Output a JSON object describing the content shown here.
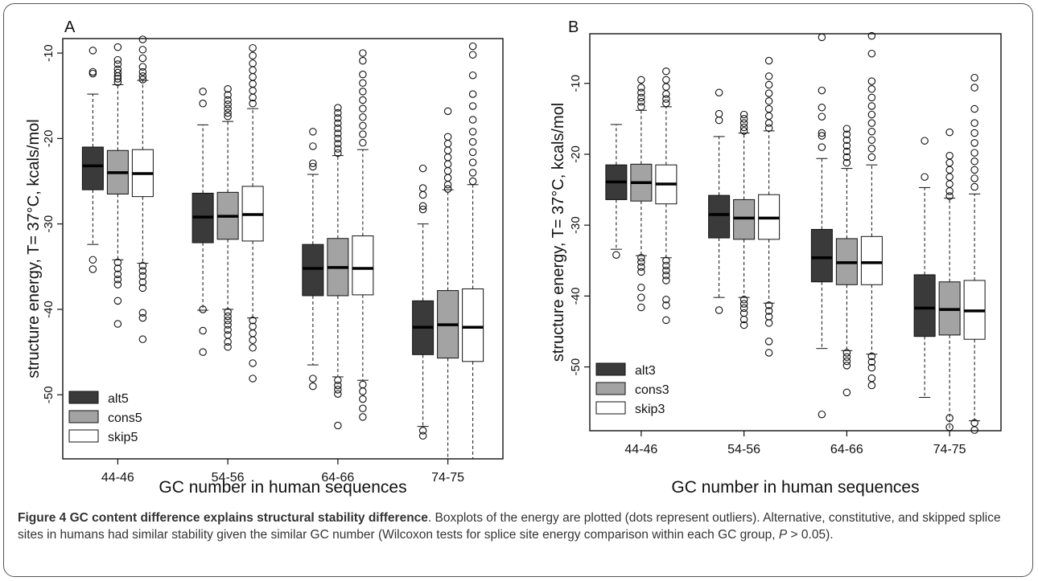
{
  "chart_data": [
    {
      "type": "box",
      "panel_label": "A",
      "ylabel": "structure energy, T= 37°C, kcals/mol",
      "xlabel": "GC number in human sequences",
      "ylim": [
        -57.5,
        -8.3
      ],
      "yticks": [
        -10,
        -20,
        -30,
        -40,
        -50
      ],
      "categories": [
        "44-46",
        "54-56",
        "64-66",
        "74-75"
      ],
      "legend": {
        "position": "bottom-left",
        "entries": [
          "alt5",
          "cons5",
          "skip5"
        ]
      },
      "series": [
        {
          "name": "alt5",
          "color": "#3a3a3a",
          "boxes": [
            {
              "whisker_low": -32.4,
              "q1": -26.0,
              "median": -23.2,
              "q3": -21.0,
              "whisker_high": -14.8,
              "outliers": [
                -9.7,
                -12.2,
                -12.4,
                -34.2,
                -35.3
              ]
            },
            {
              "whisker_low": -40.1,
              "q1": -32.2,
              "median": -29.2,
              "q3": -26.4,
              "whisker_high": -18.4,
              "outliers": [
                -14.5,
                -15.9,
                -40.0,
                -42.5,
                -45.0
              ]
            },
            {
              "whisker_low": -46.5,
              "q1": -38.4,
              "median": -35.2,
              "q3": -32.4,
              "whisker_high": -24.2,
              "outliers": [
                -19.2,
                -20.9,
                -22.9,
                -23.3,
                -48.1,
                -49.0
              ]
            },
            {
              "whisker_low": -53.7,
              "q1": -45.3,
              "median": -42.1,
              "q3": -39.0,
              "whisker_high": -30.0,
              "outliers": [
                -23.5,
                -25.8,
                -26.6,
                -27.9,
                -28.3,
                -54.2,
                -54.8
              ]
            }
          ]
        },
        {
          "name": "cons5",
          "color": "#a3a3a3",
          "boxes": [
            {
              "whisker_low": -34.2,
              "q1": -26.5,
              "median": -24.0,
              "q3": -21.4,
              "whisker_high": -13.7,
              "outliers": [
                -9.3,
                -10.8,
                -11.3,
                -11.9,
                -12.3,
                -12.7,
                -13.0,
                -13.4,
                -34.5,
                -35.2,
                -35.9,
                -36.5,
                -37.1,
                -39.0,
                -41.7
              ]
            },
            {
              "whisker_low": -40.0,
              "q1": -31.8,
              "median": -29.1,
              "q3": -26.3,
              "whisker_high": -18.0,
              "outliers": [
                -14.2,
                -14.9,
                -15.5,
                -16.0,
                -16.5,
                -17.0,
                -17.4,
                -40.3,
                -40.8,
                -41.3,
                -41.8,
                -42.4,
                -43.0,
                -43.8,
                -44.4
              ]
            },
            {
              "whisker_low": -47.9,
              "q1": -38.4,
              "median": -35.1,
              "q3": -31.7,
              "whisker_high": -22.0,
              "outliers": [
                -16.4,
                -17.0,
                -17.6,
                -18.2,
                -18.8,
                -19.4,
                -20.0,
                -20.6,
                -21.2,
                -21.7,
                -48.3,
                -48.9,
                -49.4,
                -49.9,
                -53.6
              ]
            },
            {
              "whisker_low": -57.5,
              "q1": -45.7,
              "median": -41.8,
              "q3": -37.8,
              "whisker_high": -26.0,
              "outliers": [
                -16.8,
                -19.8,
                -20.6,
                -21.4,
                -22.2,
                -23.0,
                -23.8,
                -24.6,
                -25.4,
                -25.9
              ]
            }
          ]
        },
        {
          "name": "skip5",
          "color": "#ffffff",
          "boxes": [
            {
              "whisker_low": -34.6,
              "q1": -26.8,
              "median": -24.1,
              "q3": -21.3,
              "whisker_high": -13.2,
              "outliers": [
                -8.4,
                -9.6,
                -10.6,
                -11.6,
                -12.2,
                -12.7,
                -13.1,
                -34.9,
                -35.5,
                -36.1,
                -36.8,
                -37.5,
                -40.4,
                -41.0,
                -43.5
              ]
            },
            {
              "whisker_low": -41.0,
              "q1": -32.0,
              "median": -28.9,
              "q3": -25.6,
              "whisker_high": -16.5,
              "outliers": [
                -9.4,
                -10.3,
                -11.2,
                -12.0,
                -12.8,
                -13.6,
                -14.4,
                -15.2,
                -15.9,
                -41.3,
                -42.0,
                -42.8,
                -43.6,
                -44.5,
                -46.3,
                -48.1
              ]
            },
            {
              "whisker_low": -48.3,
              "q1": -38.3,
              "median": -35.2,
              "q3": -31.4,
              "whisker_high": -21.3,
              "outliers": [
                -10.0,
                -10.9,
                -12.5,
                -13.5,
                -14.5,
                -15.5,
                -16.5,
                -17.5,
                -18.5,
                -19.5,
                -20.5,
                -48.8,
                -49.6,
                -50.5,
                -51.6,
                -52.6
              ]
            },
            {
              "whisker_low": -57.5,
              "q1": -46.1,
              "median": -42.1,
              "q3": -37.6,
              "whisker_high": -25.4,
              "outliers": [
                -9.2,
                -10.2,
                -12.6,
                -14.8,
                -16.2,
                -17.8,
                -19.2,
                -20.4,
                -21.6,
                -22.8,
                -24.0,
                -25.0
              ]
            }
          ]
        }
      ]
    },
    {
      "type": "box",
      "panel_label": "B",
      "ylabel": "structure energy, T= 37°C, kcals/mol",
      "xlabel": "GC number in human sequences",
      "ylim": [
        -59.0,
        -3.0
      ],
      "yticks": [
        -10,
        -20,
        -30,
        -40,
        -50
      ],
      "categories": [
        "44-46",
        "54-56",
        "64-66",
        "74-75"
      ],
      "legend": {
        "position": "bottom-left",
        "entries": [
          "alt3",
          "cons3",
          "skip3"
        ]
      },
      "series": [
        {
          "name": "alt3",
          "color": "#3a3a3a",
          "boxes": [
            {
              "whisker_low": -33.4,
              "q1": -26.4,
              "median": -23.9,
              "q3": -21.5,
              "whisker_high": -15.8,
              "outliers": [
                -34.2
              ]
            },
            {
              "whisker_low": -40.2,
              "q1": -31.8,
              "median": -28.5,
              "q3": -25.8,
              "whisker_high": -17.5,
              "outliers": [
                -11.3,
                -14.3,
                -15.2,
                -42.0
              ]
            },
            {
              "whisker_low": -47.4,
              "q1": -38.0,
              "median": -34.6,
              "q3": -30.6,
              "whisker_high": -20.6,
              "outliers": [
                -3.5,
                -11.0,
                -13.4,
                -14.7,
                -17.0,
                -17.4,
                -19.0,
                -56.7
              ]
            },
            {
              "whisker_low": -54.3,
              "q1": -45.7,
              "median": -41.7,
              "q3": -37.0,
              "whisker_high": -24.7,
              "outliers": [
                -18.1,
                -23.2
              ]
            }
          ]
        },
        {
          "name": "cons3",
          "color": "#a3a3a3",
          "boxes": [
            {
              "whisker_low": -34.3,
              "q1": -26.6,
              "median": -24.0,
              "q3": -21.4,
              "whisker_high": -13.8,
              "outliers": [
                -9.5,
                -10.6,
                -11.3,
                -12.0,
                -12.6,
                -13.3,
                -34.6,
                -35.2,
                -35.9,
                -36.6,
                -38.8,
                -40.2,
                -41.6
              ]
            },
            {
              "whisker_low": -40.2,
              "q1": -32.0,
              "median": -29.0,
              "q3": -26.4,
              "whisker_high": -17.0,
              "outliers": [
                -14.4,
                -15.0,
                -15.6,
                -16.2,
                -16.7,
                -40.5,
                -41.1,
                -41.7,
                -42.4,
                -43.3,
                -44.1
              ]
            },
            {
              "whisker_low": -47.7,
              "q1": -38.4,
              "median": -35.3,
              "q3": -31.9,
              "whisker_high": -22.0,
              "outliers": [
                -16.4,
                -17.2,
                -18.0,
                -18.8,
                -19.6,
                -20.4,
                -21.2,
                -48.0,
                -48.6,
                -49.2,
                -49.8,
                -53.6
              ]
            },
            {
              "whisker_low": -59.0,
              "q1": -45.5,
              "median": -41.9,
              "q3": -38.0,
              "whisker_high": -26.2,
              "outliers": [
                -16.9,
                -20.2,
                -21.2,
                -22.2,
                -23.2,
                -24.2,
                -25.2,
                -25.9,
                -57.2,
                -58.5
              ]
            }
          ]
        },
        {
          "name": "skip3",
          "color": "#ffffff",
          "boxes": [
            {
              "whisker_low": -34.6,
              "q1": -27.0,
              "median": -24.2,
              "q3": -21.5,
              "whisker_high": -13.3,
              "outliers": [
                -8.3,
                -9.5,
                -10.5,
                -11.5,
                -12.2,
                -12.8,
                -35.0,
                -35.7,
                -36.4,
                -37.1,
                -37.8,
                -40.5,
                -41.3,
                -43.4
              ]
            },
            {
              "whisker_low": -41.0,
              "q1": -32.0,
              "median": -29.0,
              "q3": -25.7,
              "whisker_high": -16.7,
              "outliers": [
                -6.8,
                -9.0,
                -10.2,
                -11.4,
                -12.5,
                -13.6,
                -14.6,
                -15.6,
                -16.3,
                -41.3,
                -42.1,
                -42.9,
                -43.8,
                -46.4,
                -48.0
              ]
            },
            {
              "whisker_low": -48.2,
              "q1": -38.4,
              "median": -35.3,
              "q3": -31.6,
              "whisker_high": -21.5,
              "outliers": [
                -3.3,
                -5.8,
                -9.7,
                -10.8,
                -12.0,
                -13.2,
                -14.4,
                -15.6,
                -16.8,
                -18.0,
                -19.2,
                -20.4,
                -48.5,
                -49.3,
                -50.1,
                -51.6,
                -52.6
              ]
            },
            {
              "whisker_low": -57.6,
              "q1": -46.1,
              "median": -42.1,
              "q3": -37.8,
              "whisker_high": -25.6,
              "outliers": [
                -9.2,
                -10.6,
                -13.6,
                -15.6,
                -17.0,
                -18.4,
                -19.8,
                -21.0,
                -22.2,
                -23.4,
                -24.6,
                -57.9,
                -58.9
              ]
            }
          ]
        }
      ]
    }
  ],
  "caption": {
    "label": "Figure 4",
    "title": "GC content difference explains structural stability difference",
    "text_1": ". Boxplots of the energy are plotted (dots represent outliers). Alternative, constitutive, and skipped splice sites in humans had similar stability given the similar GC number (Wilcoxon tests for splice site energy comparison within each GC group, ",
    "stat_symbol": "P",
    "text_2": " > 0.05)."
  }
}
